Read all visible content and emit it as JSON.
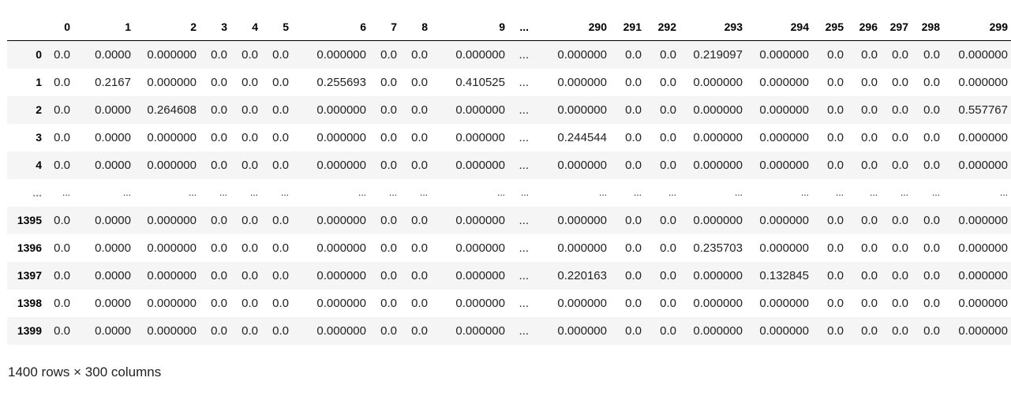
{
  "table": {
    "columns": [
      "",
      "0",
      "1",
      "2",
      "3",
      "4",
      "5",
      "6",
      "7",
      "8",
      "9",
      "...",
      "290",
      "291",
      "292",
      "293",
      "294",
      "295",
      "296",
      "297",
      "298",
      "299"
    ],
    "rows": [
      [
        "0",
        "0.0",
        "0.0000",
        "0.000000",
        "0.0",
        "0.0",
        "0.0",
        "0.000000",
        "0.0",
        "0.0",
        "0.000000",
        "...",
        "0.000000",
        "0.0",
        "0.0",
        "0.219097",
        "0.000000",
        "0.0",
        "0.0",
        "0.0",
        "0.0",
        "0.000000"
      ],
      [
        "1",
        "0.0",
        "0.2167",
        "0.000000",
        "0.0",
        "0.0",
        "0.0",
        "0.255693",
        "0.0",
        "0.0",
        "0.410525",
        "...",
        "0.000000",
        "0.0",
        "0.0",
        "0.000000",
        "0.000000",
        "0.0",
        "0.0",
        "0.0",
        "0.0",
        "0.000000"
      ],
      [
        "2",
        "0.0",
        "0.0000",
        "0.264608",
        "0.0",
        "0.0",
        "0.0",
        "0.000000",
        "0.0",
        "0.0",
        "0.000000",
        "...",
        "0.000000",
        "0.0",
        "0.0",
        "0.000000",
        "0.000000",
        "0.0",
        "0.0",
        "0.0",
        "0.0",
        "0.557767"
      ],
      [
        "3",
        "0.0",
        "0.0000",
        "0.000000",
        "0.0",
        "0.0",
        "0.0",
        "0.000000",
        "0.0",
        "0.0",
        "0.000000",
        "...",
        "0.244544",
        "0.0",
        "0.0",
        "0.000000",
        "0.000000",
        "0.0",
        "0.0",
        "0.0",
        "0.0",
        "0.000000"
      ],
      [
        "4",
        "0.0",
        "0.0000",
        "0.000000",
        "0.0",
        "0.0",
        "0.0",
        "0.000000",
        "0.0",
        "0.0",
        "0.000000",
        "...",
        "0.000000",
        "0.0",
        "0.0",
        "0.000000",
        "0.000000",
        "0.0",
        "0.0",
        "0.0",
        "0.0",
        "0.000000"
      ],
      [
        "...",
        "...",
        "...",
        "...",
        "...",
        "...",
        "...",
        "...",
        "...",
        "...",
        "...",
        "...",
        "...",
        "...",
        "...",
        "...",
        "...",
        "...",
        "...",
        "...",
        "...",
        "..."
      ],
      [
        "1395",
        "0.0",
        "0.0000",
        "0.000000",
        "0.0",
        "0.0",
        "0.0",
        "0.000000",
        "0.0",
        "0.0",
        "0.000000",
        "...",
        "0.000000",
        "0.0",
        "0.0",
        "0.000000",
        "0.000000",
        "0.0",
        "0.0",
        "0.0",
        "0.0",
        "0.000000"
      ],
      [
        "1396",
        "0.0",
        "0.0000",
        "0.000000",
        "0.0",
        "0.0",
        "0.0",
        "0.000000",
        "0.0",
        "0.0",
        "0.000000",
        "...",
        "0.000000",
        "0.0",
        "0.0",
        "0.235703",
        "0.000000",
        "0.0",
        "0.0",
        "0.0",
        "0.0",
        "0.000000"
      ],
      [
        "1397",
        "0.0",
        "0.0000",
        "0.000000",
        "0.0",
        "0.0",
        "0.0",
        "0.000000",
        "0.0",
        "0.0",
        "0.000000",
        "...",
        "0.220163",
        "0.0",
        "0.0",
        "0.000000",
        "0.132845",
        "0.0",
        "0.0",
        "0.0",
        "0.0",
        "0.000000"
      ],
      [
        "1398",
        "0.0",
        "0.0000",
        "0.000000",
        "0.0",
        "0.0",
        "0.0",
        "0.000000",
        "0.0",
        "0.0",
        "0.000000",
        "...",
        "0.000000",
        "0.0",
        "0.0",
        "0.000000",
        "0.000000",
        "0.0",
        "0.0",
        "0.0",
        "0.0",
        "0.000000"
      ],
      [
        "1399",
        "0.0",
        "0.0000",
        "0.000000",
        "0.0",
        "0.0",
        "0.0",
        "0.000000",
        "0.0",
        "0.0",
        "0.000000",
        "...",
        "0.000000",
        "0.0",
        "0.0",
        "0.000000",
        "0.000000",
        "0.0",
        "0.0",
        "0.0",
        "0.0",
        "0.000000"
      ]
    ]
  },
  "summary": "1400 rows × 300 columns",
  "colors": {
    "stripe": "#f5f5f5",
    "header_rule": "#000000"
  }
}
